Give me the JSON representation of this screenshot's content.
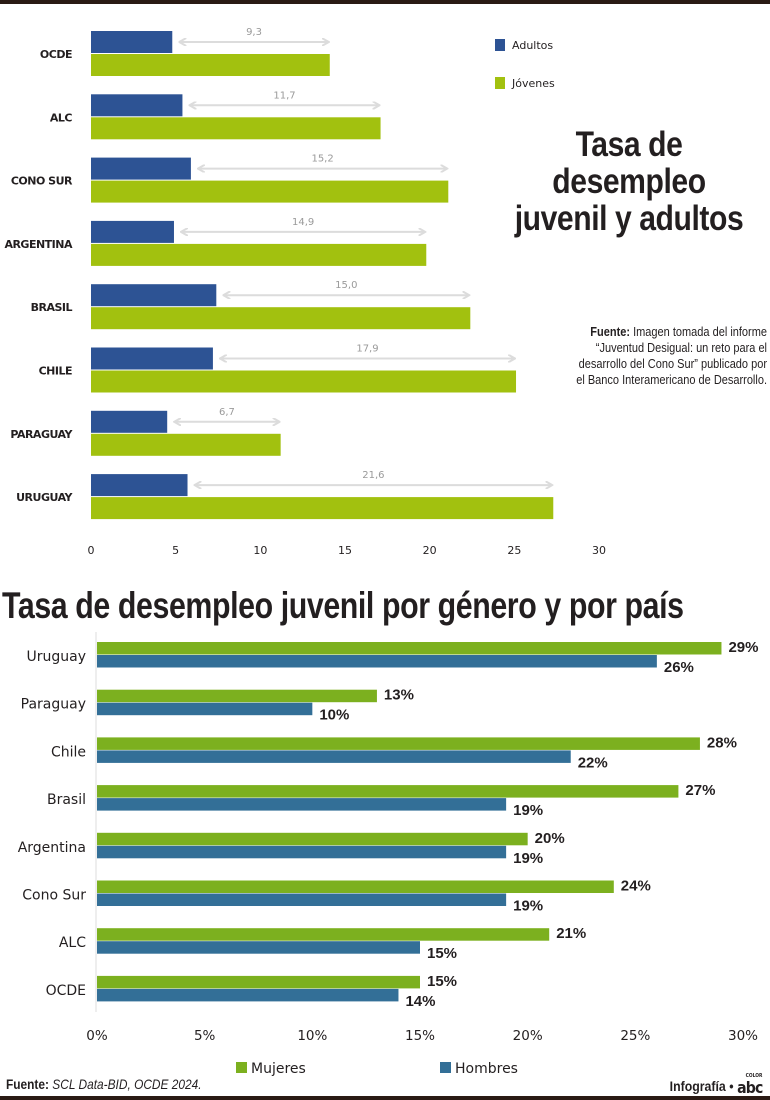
{
  "chart_data": [
    {
      "type": "bar",
      "orientation": "horizontal",
      "title": "Tasa de desempleo juvenil y adultos",
      "categories": [
        "OCDE",
        "ALC",
        "CONO SUR",
        "ARGENTINA",
        "BRASIL",
        "CHILE",
        "PARAGUAY",
        "URUGUAY"
      ],
      "series": [
        {
          "name": "Adultos",
          "color": "#2d5394",
          "values": [
            4.8,
            5.4,
            5.9,
            4.9,
            7.4,
            7.2,
            4.5,
            5.7
          ]
        },
        {
          "name": "Jóvenes",
          "color": "#a2c10f",
          "values": [
            14.1,
            17.1,
            21.1,
            19.8,
            22.4,
            25.1,
            11.2,
            27.3
          ]
        }
      ],
      "annotations": {
        "label": "gap (Jóvenes − Adultos)",
        "values": [
          "9,3",
          "11,7",
          "15,2",
          "14,9",
          "15,0",
          "17,9",
          "6,7",
          "21,6"
        ],
        "color": "#dcdcdc"
      },
      "xlim": [
        0,
        30
      ],
      "xticks": [
        "0",
        "5",
        "10",
        "15",
        "20",
        "25",
        "30"
      ],
      "xlabel": "",
      "ylabel": "",
      "grid": false,
      "legend_position": "top-right",
      "source_label": "Fuente:",
      "source_text": "Imagen tomada del informe “Juventud Desigual: un reto para el desarrollo del Cono Sur” publicado por el Banco Interamericano de Desarrollo."
    },
    {
      "type": "bar",
      "orientation": "horizontal",
      "title": "Tasa de desempleo juvenil por género y por país",
      "categories": [
        "Uruguay",
        "Paraguay",
        "Chile",
        "Brasil",
        "Argentina",
        "Cono Sur",
        "ALC",
        "OCDE"
      ],
      "series": [
        {
          "name": "Mujeres",
          "color": "#7cb01f",
          "values": [
            29,
            13,
            28,
            27,
            20,
            24,
            21,
            15
          ],
          "labels": [
            "29%",
            "13%",
            "28%",
            "27%",
            "20%",
            "24%",
            "21%",
            "15%"
          ]
        },
        {
          "name": "Hombres",
          "color": "#336f97",
          "values": [
            26,
            10,
            22,
            19,
            19,
            19,
            15,
            14
          ],
          "labels": [
            "26%",
            "10%",
            "22%",
            "19%",
            "19%",
            "19%",
            "15%",
            "14%"
          ]
        }
      ],
      "xlim": [
        0,
        30
      ],
      "xticks": [
        "0%",
        "5%",
        "10%",
        "15%",
        "20%",
        "25%",
        "30%"
      ],
      "xlabel": "",
      "ylabel": "",
      "grid": false,
      "legend_position": "bottom-center"
    }
  ],
  "footer": {
    "source_label": "Fuente:",
    "source_text": "SCL Data-BID, OCDE 2024.",
    "credit": "Infografía",
    "bullet": "•",
    "logo": "abc",
    "logo_sup": "COLOR"
  }
}
